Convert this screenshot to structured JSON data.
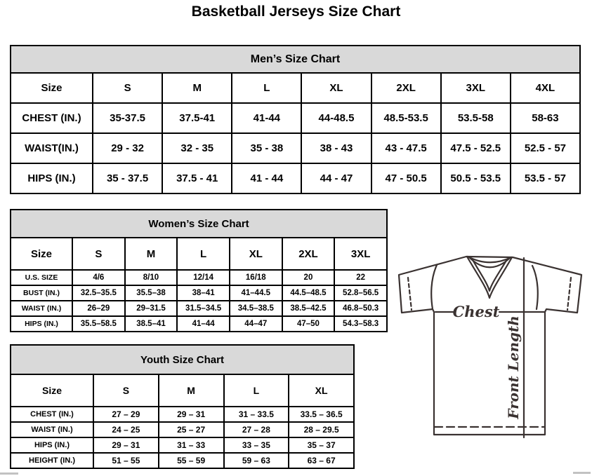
{
  "page": {
    "title": "Basketball Jerseys Size Chart"
  },
  "colors": {
    "header_bg": "#d9d9d9",
    "border": "#000000",
    "diagram_line": "#3a3231"
  },
  "tables": {
    "men": {
      "title": "Men’s Size Chart",
      "size_label": "Size",
      "columns": [
        "S",
        "M",
        "L",
        "XL",
        "2XL",
        "3XL",
        "4XL"
      ],
      "rows": [
        {
          "label": "CHEST (IN.)",
          "values": [
            "35-37.5",
            "37.5-41",
            "41-44",
            "44-48.5",
            "48.5-53.5",
            "53.5-58",
            "58-63"
          ]
        },
        {
          "label": "WAIST(IN.)",
          "values": [
            "29 - 32",
            "32 - 35",
            "35 - 38",
            "38 - 43",
            "43 - 47.5",
            "47.5 - 52.5",
            "52.5 - 57"
          ]
        },
        {
          "label": "HIPS (IN.)",
          "values": [
            "35 - 37.5",
            "37.5 - 41",
            "41 - 44",
            "44 - 47",
            "47 - 50.5",
            "50.5 - 53.5",
            "53.5 - 57"
          ]
        }
      ]
    },
    "women": {
      "title": "Women’s Size Chart",
      "size_label": "Size",
      "columns": [
        "S",
        "M",
        "L",
        "XL",
        "2XL",
        "3XL"
      ],
      "rows": [
        {
          "label": "U.S. SIZE",
          "values": [
            "4/6",
            "8/10",
            "12/14",
            "16/18",
            "20",
            "22"
          ]
        },
        {
          "label": "BUST (IN.)",
          "values": [
            "32.5–35.5",
            "35.5–38",
            "38–41",
            "41–44.5",
            "44.5–48.5",
            "52.8–56.5"
          ]
        },
        {
          "label": "WAIST (IN.)",
          "values": [
            "26–29",
            "29–31.5",
            "31.5–34.5",
            "34.5–38.5",
            "38.5–42.5",
            "46.8–50.3"
          ]
        },
        {
          "label": "HIPS (IN.)",
          "values": [
            "35.5–58.5",
            "38.5–41",
            "41–44",
            "44–47",
            "47–50",
            "54.3–58.3"
          ]
        }
      ]
    },
    "youth": {
      "title": "Youth Size Chart",
      "size_label": "Size",
      "columns": [
        "S",
        "M",
        "L",
        "XL"
      ],
      "rows": [
        {
          "label": "CHEST (IN.)",
          "values": [
            "27 – 29",
            "29 – 31",
            "31 – 33.5",
            "33.5 – 36.5"
          ]
        },
        {
          "label": "WAIST (IN.)",
          "values": [
            "24 – 25",
            "25 – 27",
            "27 – 28",
            "28 – 29.5"
          ]
        },
        {
          "label": "HIPS (IN.)",
          "values": [
            "29 – 31",
            "31 – 33",
            "33 – 35",
            "35 – 37"
          ]
        },
        {
          "label": "HEIGHT (IN.)",
          "values": [
            "51 – 55",
            "55 – 59",
            "59 – 63",
            "63 – 67"
          ]
        }
      ]
    }
  },
  "diagram": {
    "chest_label": "Chest",
    "front_length_label": "Front Length"
  }
}
